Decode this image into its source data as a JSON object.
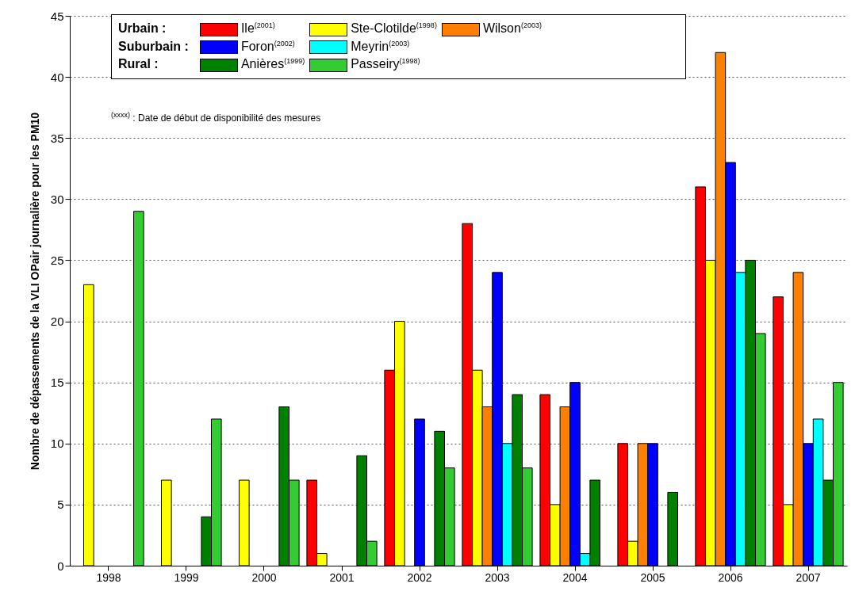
{
  "chart_data": {
    "type": "bar",
    "ylabel": "Nombre de dépassements de la VLI OPair journalière pour les PM10",
    "categories": [
      "1998",
      "1999",
      "2000",
      "2001",
      "2002",
      "2003",
      "2004",
      "2005",
      "2006",
      "2007"
    ],
    "series": [
      {
        "name": "Ile$^{(2001)}$",
        "color": "#ff0000",
        "values": [
          null,
          null,
          null,
          7,
          16,
          28,
          14,
          10,
          31,
          22
        ]
      },
      {
        "name": "Ste-Clotilde$^{(1998)}$",
        "color": "#ffff00",
        "values": [
          23,
          7,
          7,
          1,
          20,
          16,
          5,
          2,
          25,
          5
        ]
      },
      {
        "name": "Wilson$^{(2003)}$",
        "color": "#ff8000",
        "values": [
          null,
          null,
          null,
          null,
          null,
          13,
          13,
          10,
          42,
          24
        ]
      },
      {
        "name": "Foron$^{(2002)}$",
        "color": "#0000ff",
        "values": [
          null,
          null,
          null,
          null,
          12,
          24,
          15,
          10,
          33,
          10
        ]
      },
      {
        "name": "Meyrin$^{(2003)}$",
        "color": "#00ffff",
        "values": [
          null,
          null,
          null,
          null,
          null,
          10,
          1,
          null,
          24,
          12
        ]
      },
      {
        "name": "Anières$^{(1999)}$",
        "color": "#008000",
        "values": [
          null,
          4,
          13,
          9,
          11,
          14,
          7,
          6,
          25,
          7
        ]
      },
      {
        "name": "Passeiry$^{(1998)}$",
        "color": "#33cc33",
        "values": [
          29,
          12,
          7,
          2,
          8,
          8,
          null,
          null,
          19,
          15
        ]
      }
    ],
    "ylim": [
      0,
      45
    ],
    "yticks": [
      0,
      5,
      10,
      15,
      20,
      25,
      30,
      35,
      40,
      45
    ],
    "grid": "y",
    "legend": "top",
    "annotations": [
      "Urbain :",
      "Suburbain :",
      "Rural :",
      "$^{(xxxx)}$ : Date de début de disponibilité des mesures"
    ]
  }
}
